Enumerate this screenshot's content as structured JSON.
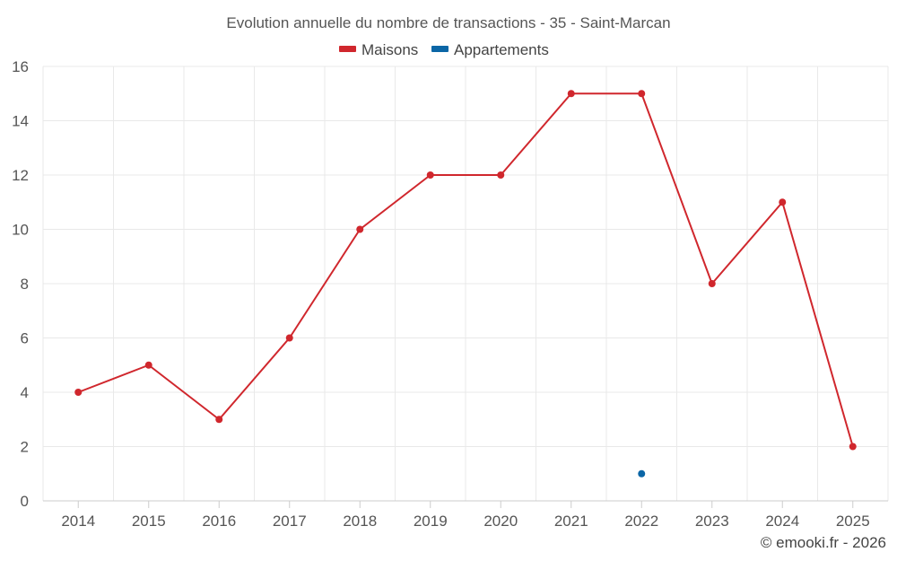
{
  "chart_data": {
    "type": "line",
    "title": "Evolution annuelle du nombre de transactions - 35 - Saint-Marcan",
    "categories": [
      "2014",
      "2015",
      "2016",
      "2017",
      "2018",
      "2019",
      "2020",
      "2021",
      "2022",
      "2023",
      "2024",
      "2025"
    ],
    "series": [
      {
        "name": "Maisons",
        "color": "#d0272d",
        "values": [
          4,
          5,
          3,
          6,
          10,
          12,
          12,
          15,
          15,
          8,
          11,
          2
        ]
      },
      {
        "name": "Appartements",
        "color": "#0b66a6",
        "values": [
          null,
          null,
          null,
          null,
          null,
          null,
          null,
          null,
          1,
          null,
          null,
          null
        ]
      }
    ],
    "ylim": [
      0,
      16
    ],
    "yticks": [
      0,
      2,
      4,
      6,
      8,
      10,
      12,
      14,
      16
    ],
    "grid": true,
    "legend": "top-center",
    "xlabel": "",
    "ylabel": ""
  },
  "credit": "© emooki.fr - 2026"
}
